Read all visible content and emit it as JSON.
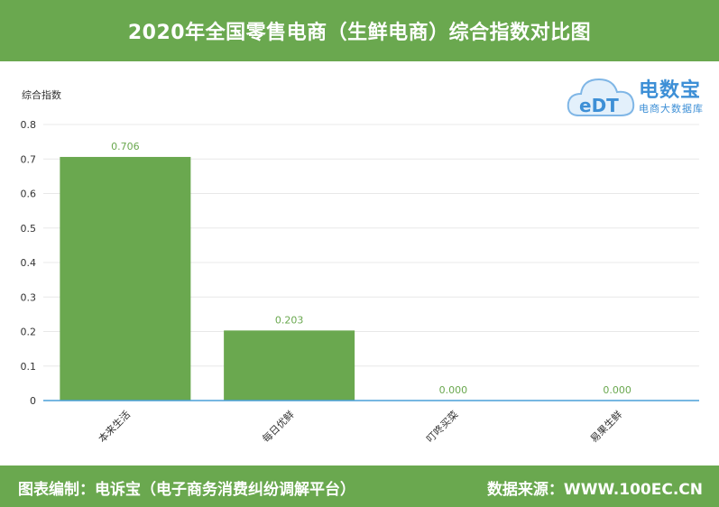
{
  "header": {
    "title": "2020年全国零售电商（生鲜电商）综合指数对比图"
  },
  "logo": {
    "mark": "eDT",
    "brand": "电数宝",
    "subtitle": "电商大数据库"
  },
  "footer": {
    "left": "图表编制：电诉宝（电子商务消费纠纷调解平台）",
    "right": "数据来源：WWW.100EC.CN"
  },
  "colors": {
    "bar": "#6aa84f",
    "header": "#6aa84f",
    "axis": "#4a9fd8",
    "grid": "#e8e8e8",
    "logo": "#3d8fd6"
  },
  "chart_data": {
    "type": "bar",
    "ylabel": "综合指数",
    "categories": [
      "本来生活",
      "每日优鲜",
      "叮咚买菜",
      "易果生鲜"
    ],
    "values": [
      0.706,
      0.203,
      0.0,
      0.0
    ],
    "value_labels": [
      "0.706",
      "0.203",
      "0.000",
      "0.000"
    ],
    "ylim": [
      0,
      0.8
    ],
    "yticks": [
      0,
      0.1,
      0.2,
      0.3,
      0.4,
      0.5,
      0.6,
      0.7,
      0.8
    ],
    "ytick_labels": [
      "0",
      "0.1",
      "0.2",
      "0.3",
      "0.4",
      "0.5",
      "0.6",
      "0.7",
      "0.8"
    ],
    "grid": true
  }
}
